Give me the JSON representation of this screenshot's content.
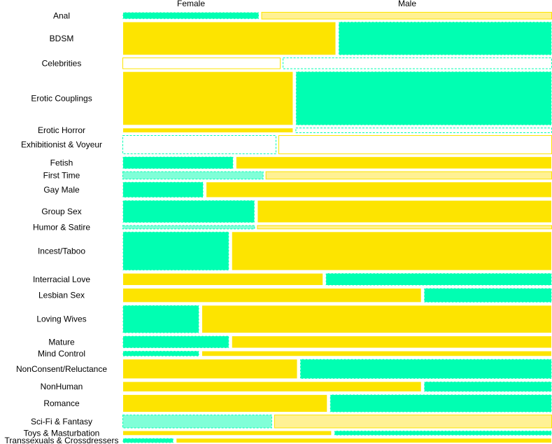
{
  "chart_data": {
    "type": "mosaic",
    "column_labels": [
      "Female",
      "Male"
    ],
    "colors": {
      "positive": "#fde400",
      "negative": "#00ffb2",
      "positive_light": "#fff194",
      "negative_light": "#80ffd8",
      "neutral_border": "#fde400"
    },
    "rows": [
      {
        "category": "Anal",
        "weight": 1.1,
        "female_share": 0.32,
        "female_fill": "negative",
        "male_fill": "positive_light"
      },
      {
        "category": "BDSM",
        "weight": 5.0,
        "female_share": 0.5,
        "female_fill": "positive",
        "male_fill": "negative"
      },
      {
        "category": "Celebrities",
        "weight": 1.7,
        "female_share": 0.37,
        "female_fill": "none",
        "male_fill": "none"
      },
      {
        "category": "Erotic Couplings",
        "weight": 8.0,
        "female_share": 0.4,
        "female_fill": "positive",
        "male_fill": "negative"
      },
      {
        "category": "Erotic Horror",
        "weight": 0.8,
        "female_share": 0.4,
        "female_fill": "positive",
        "male_fill": "none"
      },
      {
        "category": "Exhibitionist & Voyeur",
        "weight": 2.8,
        "female_share": 0.36,
        "female_fill": "none",
        "male_fill": "none"
      },
      {
        "category": "Fetish",
        "weight": 1.9,
        "female_share": 0.26,
        "female_fill": "negative",
        "male_fill": "positive"
      },
      {
        "category": "First Time",
        "weight": 1.2,
        "female_share": 0.33,
        "female_fill": "negative_light",
        "male_fill": "positive_light"
      },
      {
        "category": "Gay Male",
        "weight": 2.4,
        "female_share": 0.19,
        "female_fill": "negative",
        "male_fill": "positive"
      },
      {
        "category": "Group Sex",
        "weight": 3.4,
        "female_share": 0.31,
        "female_fill": "negative",
        "male_fill": "positive"
      },
      {
        "category": "Humor & Satire",
        "weight": 0.6,
        "female_share": 0.31,
        "female_fill": "negative_light",
        "male_fill": "positive_light"
      },
      {
        "category": "Incest/Taboo",
        "weight": 5.8,
        "female_share": 0.25,
        "female_fill": "negative",
        "male_fill": "positive"
      },
      {
        "category": "Interracial Love",
        "weight": 1.9,
        "female_share": 0.47,
        "female_fill": "positive",
        "male_fill": "negative"
      },
      {
        "category": "Lesbian Sex",
        "weight": 2.2,
        "female_share": 0.7,
        "female_fill": "positive",
        "male_fill": "negative"
      },
      {
        "category": "Loving Wives",
        "weight": 4.2,
        "female_share": 0.18,
        "female_fill": "negative",
        "male_fill": "positive"
      },
      {
        "category": "Mature",
        "weight": 1.9,
        "female_share": 0.25,
        "female_fill": "negative",
        "male_fill": "positive"
      },
      {
        "category": "Mind Control",
        "weight": 0.9,
        "female_share": 0.18,
        "female_fill": "negative",
        "male_fill": "positive"
      },
      {
        "category": "NonConsent/Reluctance",
        "weight": 3.0,
        "female_share": 0.41,
        "female_fill": "positive",
        "male_fill": "negative"
      },
      {
        "category": "NonHuman",
        "weight": 1.6,
        "female_share": 0.7,
        "female_fill": "positive",
        "male_fill": "negative"
      },
      {
        "category": "Romance",
        "weight": 2.7,
        "female_share": 0.48,
        "female_fill": "positive",
        "male_fill": "negative"
      },
      {
        "category": "Sci-Fi & Fantasy",
        "weight": 2.0,
        "female_share": 0.35,
        "female_fill": "negative_light",
        "male_fill": "positive_light"
      },
      {
        "category": "Toys & Masturbation",
        "weight": 0.8,
        "female_share": 0.49,
        "female_fill": "positive",
        "male_fill": "negative"
      },
      {
        "category": "Transsexuals & Crossdressers",
        "weight": 0.8,
        "female_share": 0.12,
        "female_fill": "negative",
        "male_fill": "positive"
      }
    ]
  }
}
